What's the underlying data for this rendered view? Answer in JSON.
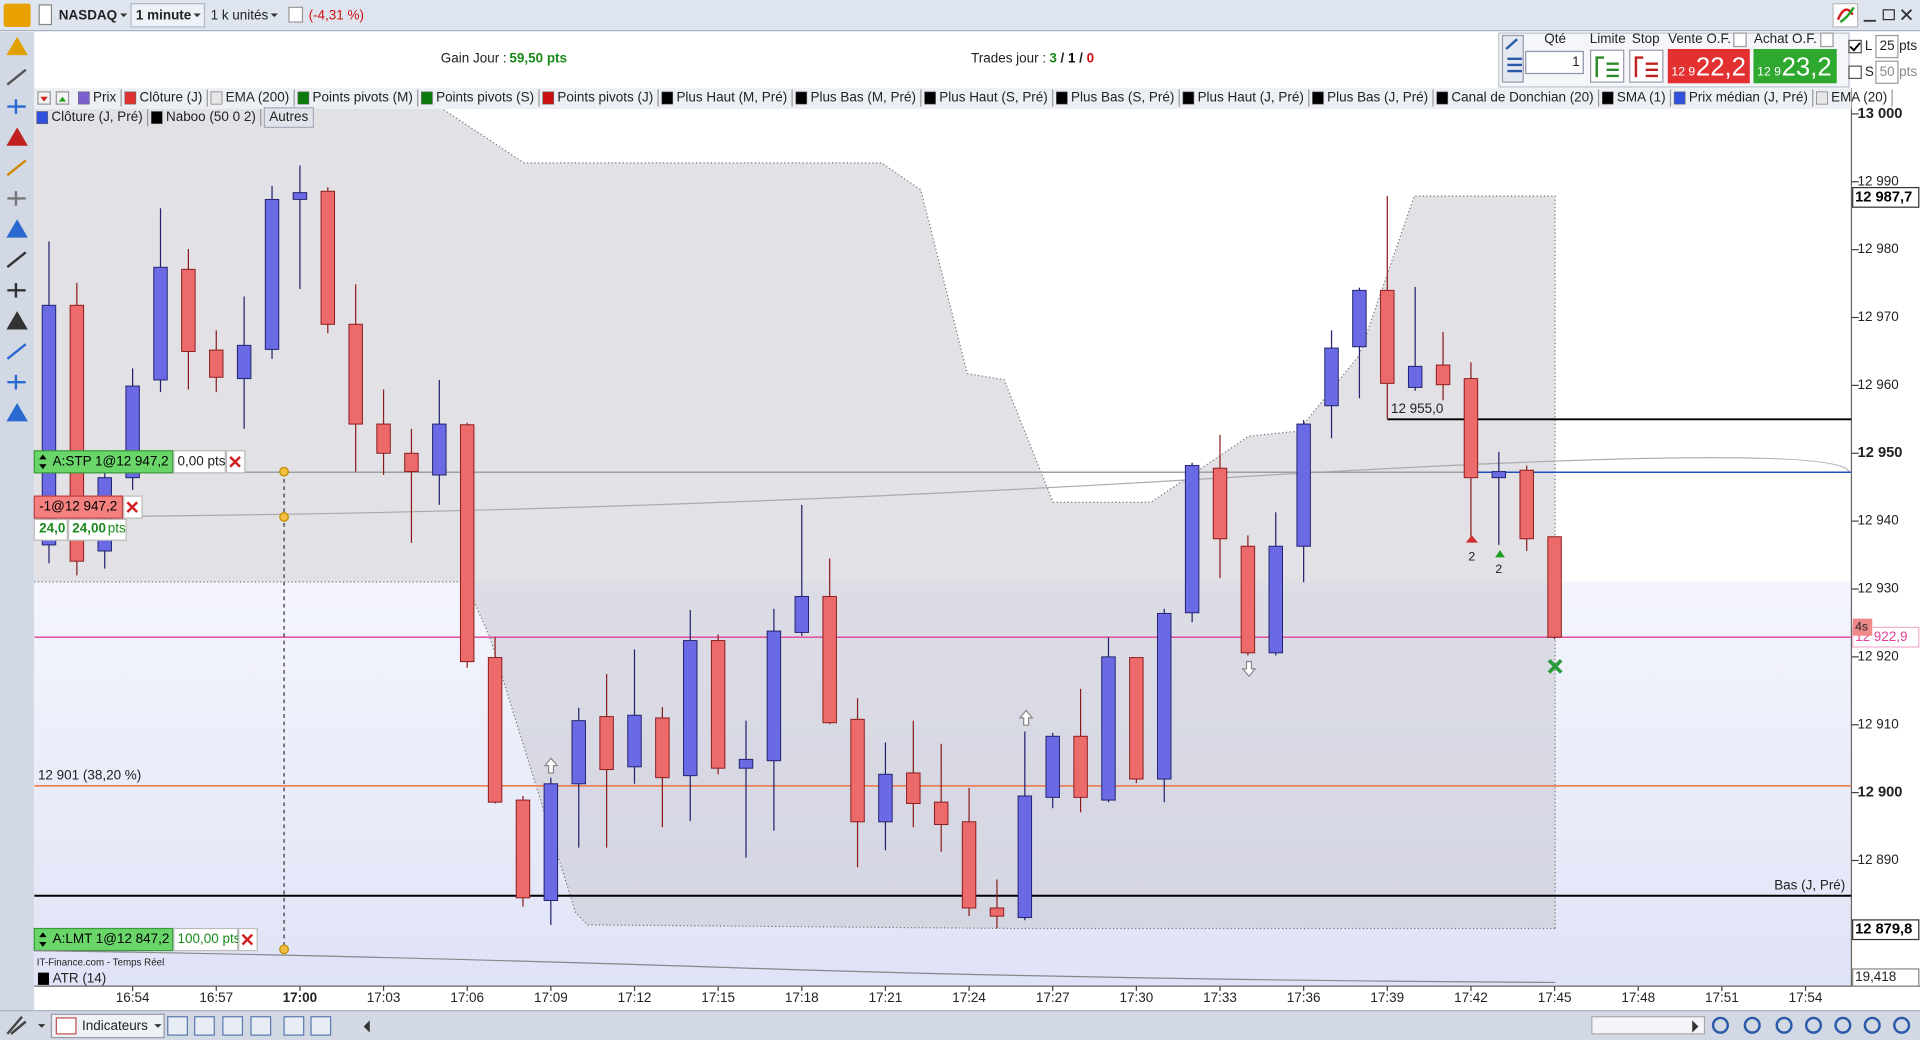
{
  "toolbar": {
    "instrument": "NASDAQ",
    "period": "1 minute",
    "units": "1 k unités",
    "change": "(-4,31 %)"
  },
  "header": {
    "gain_label": "Gain Jour :",
    "gain_value": "59,50 pts",
    "trades_label": "Trades jour :",
    "trades": [
      "3",
      "/",
      "1",
      "/",
      "0"
    ]
  },
  "order_panel": {
    "qty_label": "Qté",
    "qty": "1",
    "limit": "Limite",
    "stop": "Stop",
    "sell_label": "Vente O.F.",
    "sell_prefix": "12 9",
    "sell": "22,2",
    "buy_label": "Achat O.F.",
    "buy_prefix": "12 9",
    "buy": "23,2",
    "l_label": "L",
    "l_value": "25",
    "l_unit": "pts",
    "s_label": "S",
    "s_value": "50",
    "s_unit": "pts"
  },
  "indicators": [
    [
      {
        "name": "Prix",
        "color": "#7a5fd0"
      },
      {
        "name": "Clôture (J)",
        "color": "#e03030"
      },
      {
        "name": "EMA (200)",
        "color": "#e6e6e6"
      },
      {
        "name": "Points pivots (M)",
        "color": "#0a7a0a"
      },
      {
        "name": "Points pivots (S)",
        "color": "#0a7a0a"
      },
      {
        "name": "Points pivots (J)",
        "color": "#cc1010"
      },
      {
        "name": "Plus Haut (M, Pré)",
        "color": "#000000"
      },
      {
        "name": "Plus Bas (M, Pré)",
        "color": "#000000"
      },
      {
        "name": "Plus Haut (S, Pré)",
        "color": "#000000"
      },
      {
        "name": "Plus Bas (S, Pré)",
        "color": "#000000"
      },
      {
        "name": "Plus Haut (J, Pré)",
        "color": "#000000"
      },
      {
        "name": "Plus Bas (J, Pré)",
        "color": "#000000"
      },
      {
        "name": "Canal de Donchian (20)",
        "color": "#000000"
      },
      {
        "name": "SMA (1)",
        "color": "#000000"
      },
      {
        "name": "Prix médian (J, Pré)",
        "color": "#3050dd"
      },
      {
        "name": "EMA (20)",
        "color": "#e6e6e6"
      }
    ],
    [
      {
        "name": "Clôture (J, Pré)",
        "color": "#3050dd"
      },
      {
        "name": "Naboo (50 0 2)",
        "color": "#000000"
      }
    ]
  ],
  "others_button": "Autres",
  "chart_data": {
    "type": "candlestick",
    "categories": [
      null,
      null,
      null,
      "16:54",
      null,
      null,
      "16:57",
      null,
      null,
      "17:00",
      null,
      null,
      "17:03",
      null,
      null,
      "17:06",
      null,
      null,
      "17:09",
      null,
      null,
      "17:12",
      null,
      null,
      "17:15",
      null,
      null,
      "17:18",
      null,
      null,
      "17:21",
      null,
      null,
      "17:24",
      null,
      null,
      "17:27",
      null,
      null,
      "17:30",
      null,
      null,
      "17:33",
      null,
      null,
      "17:36",
      null,
      null,
      "17:39",
      null,
      null,
      "17:42",
      null,
      null,
      "17:45",
      null,
      null,
      "17:48",
      null,
      null,
      "17:51",
      null,
      null,
      "17:54"
    ],
    "open": [
      12936.5,
      12971.8,
      12935.6,
      12946.4,
      12960.8,
      12977.1,
      12965.2,
      12961.0,
      12965.3,
      12987.4,
      12988.6,
      12969.0,
      12954.3,
      12950.0,
      12946.8,
      12954.2,
      12919.9,
      12898.9,
      12884.1,
      12901.3,
      12911.2,
      12903.8,
      12911.0,
      12902.5,
      12922.4,
      12903.6,
      12904.7,
      12923.6,
      12928.9,
      12910.8,
      12895.7,
      12902.9,
      12898.6,
      12895.7,
      12883.0,
      12881.6,
      12899.3,
      12908.3,
      12898.9,
      12919.9,
      12902.0,
      12926.5,
      12947.8,
      12936.3,
      12920.6,
      12936.3,
      12957.0,
      12965.7,
      12974.0,
      12959.7,
      12963.0,
      12961.0,
      12946.4,
      12947.5,
      12937.7,
      null,
      null,
      null,
      null,
      null,
      null,
      null,
      null,
      null
    ],
    "high": [
      12981.2,
      12975.1,
      12948.2,
      12962.5,
      12986.1,
      12980.1,
      12968.1,
      12973.1,
      12989.4,
      12992.4,
      12989.2,
      12974.9,
      12959.4,
      12953.6,
      12960.8,
      12954.5,
      12922.9,
      12899.5,
      12902.2,
      12912.5,
      12917.5,
      12921.1,
      12912.6,
      12926.9,
      12923.3,
      12910.6,
      12927.1,
      12942.4,
      12934.5,
      12913.9,
      12907.4,
      12910.6,
      12907.2,
      12900.7,
      12887.2,
      12909.0,
      12908.8,
      12915.3,
      12922.9,
      12919.9,
      12927.1,
      12948.6,
      12952.7,
      12937.9,
      12941.3,
      12954.9,
      12968.1,
      12974.4,
      12987.9,
      12974.5,
      12967.9,
      12963.4,
      12950.2,
      12948.2,
      12937.7,
      null,
      null,
      null,
      null,
      null,
      null,
      null,
      null,
      null
    ],
    "low": [
      12933.8,
      12932.0,
      12933.0,
      12944.6,
      12959.0,
      12959.4,
      12959.0,
      12953.6,
      12963.9,
      12974.2,
      12967.7,
      12947.3,
      12946.8,
      12936.8,
      12942.4,
      12918.4,
      12898.4,
      12883.2,
      12880.5,
      12891.9,
      12891.9,
      12901.3,
      12894.9,
      12895.8,
      12902.7,
      12890.4,
      12894.4,
      12923.1,
      12910.1,
      12889.0,
      12891.5,
      12894.9,
      12891.3,
      12881.8,
      12880.0,
      12881.2,
      12897.7,
      12897.1,
      12898.6,
      12901.4,
      12898.6,
      12925.1,
      12931.6,
      12920.2,
      12920.2,
      12931.0,
      12952.2,
      12958.1,
      12955.1,
      12959.2,
      12957.8,
      12937.4,
      12936.5,
      12935.6,
      12922.6,
      null,
      null,
      null,
      null,
      null,
      null,
      null,
      null,
      null
    ],
    "close": [
      12971.8,
      12934.1,
      12946.4,
      12959.9,
      12977.4,
      12965.0,
      12961.2,
      12965.9,
      12987.4,
      12988.4,
      12969.0,
      12954.3,
      12950.0,
      12947.3,
      12954.3,
      12919.3,
      12898.6,
      12884.5,
      12901.3,
      12910.6,
      12903.4,
      12911.4,
      12902.2,
      12922.4,
      12903.6,
      12904.9,
      12923.8,
      12928.9,
      12910.3,
      12895.7,
      12902.7,
      12898.4,
      12895.3,
      12883.0,
      12881.8,
      12899.5,
      12908.3,
      12899.3,
      12920.0,
      12902.0,
      12926.4,
      12948.2,
      12937.4,
      12920.6,
      12936.3,
      12954.3,
      12965.5,
      12974.0,
      12960.3,
      12962.8,
      12960.1,
      12946.4,
      12947.3,
      12937.4,
      12922.9,
      null,
      null,
      null,
      null,
      null,
      null,
      null,
      null,
      null
    ],
    "up_color": "#6a6ae4",
    "up_border": "#22226e",
    "down_color": "#ec6a6a",
    "down_border": "#8c1c1c",
    "ylim": [
      12874.2,
      13000.9
    ],
    "yticks": [
      {
        "value": 13000,
        "label": "13 000"
      },
      {
        "value": 12990,
        "label": "12 990"
      },
      {
        "value": 12980,
        "label": "12 980"
      },
      {
        "value": 12970,
        "label": "12 970"
      },
      {
        "value": 12960,
        "label": "12 960"
      },
      {
        "value": 12950,
        "label": "12 950"
      },
      {
        "value": 12940,
        "label": "12 940"
      },
      {
        "value": 12930,
        "label": "12 930"
      },
      {
        "value": 12920,
        "label": "12 920"
      },
      {
        "value": 12910,
        "label": "12 910"
      },
      {
        "value": 12900,
        "label": "12 900"
      },
      {
        "value": 12890,
        "label": "12 890"
      }
    ],
    "levels": [
      {
        "value": 12947.2,
        "color": "#a0a0a0"
      },
      {
        "value": 12955.0,
        "color": "#000000",
        "start": "17:39",
        "label": "12 955,0"
      },
      {
        "value": 12947.2,
        "color": "#2050c0",
        "start": "17:42"
      },
      {
        "value": 12922.9,
        "color": "#e0409a"
      },
      {
        "value": 12901,
        "color": "#f07040",
        "label": "12 901 (38,20 %)"
      },
      {
        "value": 12884.8,
        "color": "#000000",
        "label": "Bas (J, Pré)"
      }
    ],
    "price_tags": [
      {
        "value": 12987.7,
        "label": "12 987,7",
        "color": "#000000"
      },
      {
        "value": 12879.8,
        "label": "12 879,8",
        "color": "#000000"
      },
      {
        "value": 12922.9,
        "label": "12 922,9",
        "color": "#e0409a"
      }
    ],
    "countdown": "4s",
    "trade_counts": [
      "2",
      "2"
    ]
  },
  "orders": {
    "stop": {
      "label": "A:STP 1@12 947,2",
      "pnl": "0,00 pts"
    },
    "position": {
      "label": "-1@12 947,2",
      "points": "24,0",
      "pnl": "24,00",
      "unit": "pts"
    },
    "limit": {
      "label": "A:LMT 1@12 847,2",
      "pnl": "100,00 pts"
    }
  },
  "atr": {
    "label": "ATR (14)",
    "value": "19,418"
  },
  "source": "IT-Finance.com - Temps Réel",
  "footer": {
    "indicators_button": "Indicateurs"
  }
}
